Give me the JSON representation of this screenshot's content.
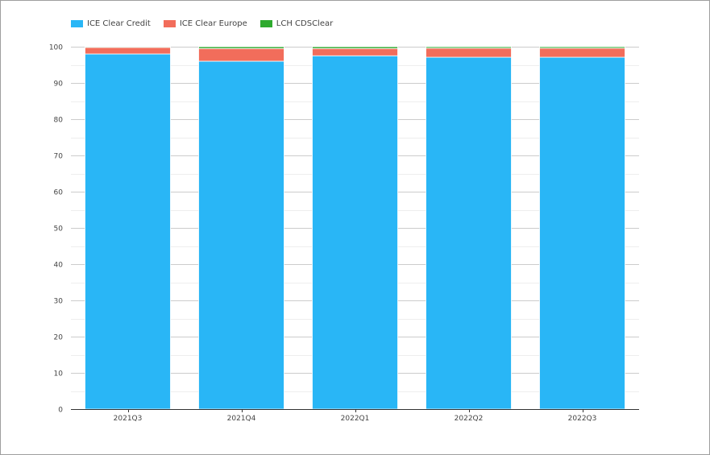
{
  "chart_data": {
    "type": "bar",
    "stacked": true,
    "title": "",
    "xlabel": "",
    "ylabel": "",
    "ylim": [
      0,
      100
    ],
    "yticks": [
      0,
      10,
      20,
      30,
      40,
      50,
      60,
      70,
      80,
      90,
      100
    ],
    "grid": true,
    "legend_position": "top-left",
    "categories": [
      "2021Q3",
      "2021Q4",
      "2022Q1",
      "2022Q2",
      "2022Q3"
    ],
    "series": [
      {
        "name": "ICE Clear Credit",
        "color": "#29b6f6",
        "values": [
          98.0,
          96.0,
          97.5,
          97.1,
          97.1
        ]
      },
      {
        "name": "ICE Clear Europe",
        "color": "#f26d5b",
        "values": [
          1.8,
          3.5,
          2.0,
          2.5,
          2.5
        ]
      },
      {
        "name": "LCH CDSClear",
        "color": "#2eaa2e",
        "values": [
          0.2,
          0.5,
          0.5,
          0.4,
          0.4
        ]
      }
    ]
  }
}
